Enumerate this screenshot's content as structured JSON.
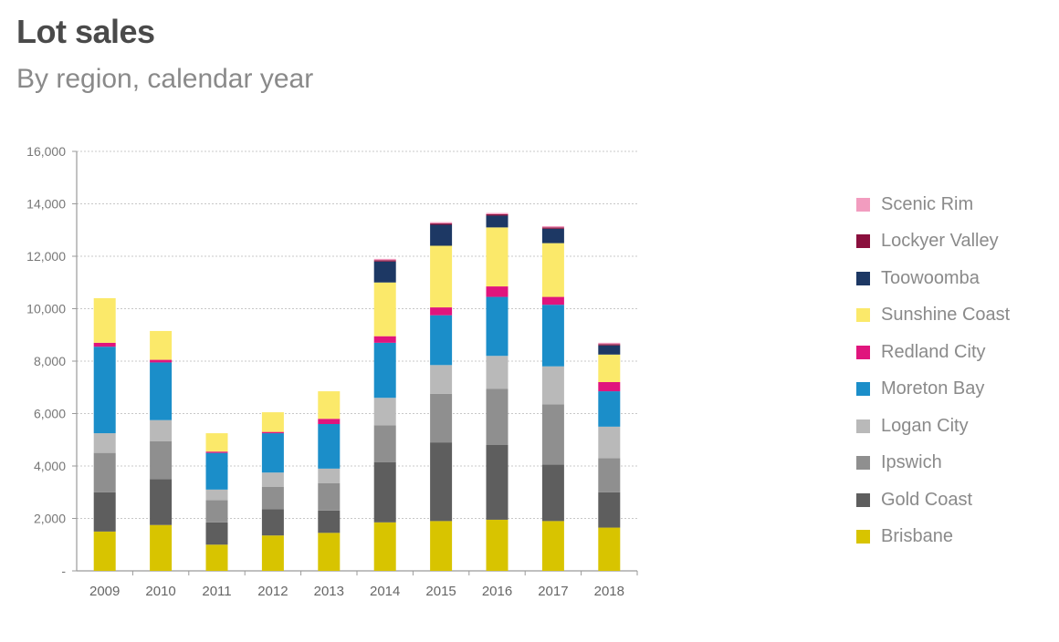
{
  "title": "Lot sales",
  "subtitle": "By region, calendar year",
  "chart_data": {
    "type": "bar",
    "stacked": true,
    "title": "Lot sales",
    "subtitle": "By region, calendar year",
    "xlabel": "",
    "ylabel": "",
    "ylim": [
      0,
      16000
    ],
    "yticks": [
      0,
      2000,
      4000,
      6000,
      8000,
      10000,
      12000,
      14000,
      16000
    ],
    "ytick_labels": [
      "-",
      "2,000",
      "4,000",
      "6,000",
      "8,000",
      "10,000",
      "12,000",
      "14,000",
      "16,000"
    ],
    "grid": true,
    "legend_position": "right",
    "categories": [
      "2009",
      "2010",
      "2011",
      "2012",
      "2013",
      "2014",
      "2015",
      "2016",
      "2017",
      "2018"
    ],
    "series": [
      {
        "name": "Brisbane",
        "color": "#d8c400",
        "values": [
          1500,
          1750,
          1000,
          1350,
          1450,
          1850,
          1900,
          1950,
          1900,
          1650
        ]
      },
      {
        "name": "Gold Coast",
        "color": "#5e5e5e",
        "values": [
          1500,
          1750,
          850,
          1000,
          850,
          2300,
          3000,
          2850,
          2150,
          1350
        ]
      },
      {
        "name": "Ipswich",
        "color": "#8f8f8f",
        "values": [
          1500,
          1450,
          850,
          850,
          1050,
          1400,
          1850,
          2150,
          2300,
          1300
        ]
      },
      {
        "name": "Logan City",
        "color": "#b9b9b9",
        "values": [
          750,
          800,
          400,
          550,
          550,
          1050,
          1100,
          1250,
          1450,
          1200
        ]
      },
      {
        "name": "Moreton Bay",
        "color": "#1b8ec9",
        "values": [
          3300,
          2200,
          1400,
          1500,
          1700,
          2100,
          1900,
          2250,
          2350,
          1350
        ]
      },
      {
        "name": "Redland City",
        "color": "#e0157d",
        "values": [
          150,
          100,
          50,
          50,
          200,
          250,
          300,
          400,
          300,
          350
        ]
      },
      {
        "name": "Sunshine Coast",
        "color": "#fbe96a",
        "values": [
          1700,
          1100,
          700,
          750,
          1050,
          2050,
          2350,
          2250,
          2050,
          1050
        ]
      },
      {
        "name": "Toowoomba",
        "color": "#1d3864",
        "values": [
          0,
          0,
          0,
          0,
          0,
          800,
          800,
          450,
          550,
          350
        ]
      },
      {
        "name": "Lockyer Valley",
        "color": "#8a0f3d",
        "values": [
          0,
          0,
          0,
          0,
          0,
          50,
          50,
          50,
          50,
          50
        ]
      },
      {
        "name": "Scenic Rim",
        "color": "#f29cbf",
        "values": [
          0,
          0,
          0,
          0,
          0,
          50,
          50,
          50,
          50,
          50
        ]
      }
    ]
  }
}
